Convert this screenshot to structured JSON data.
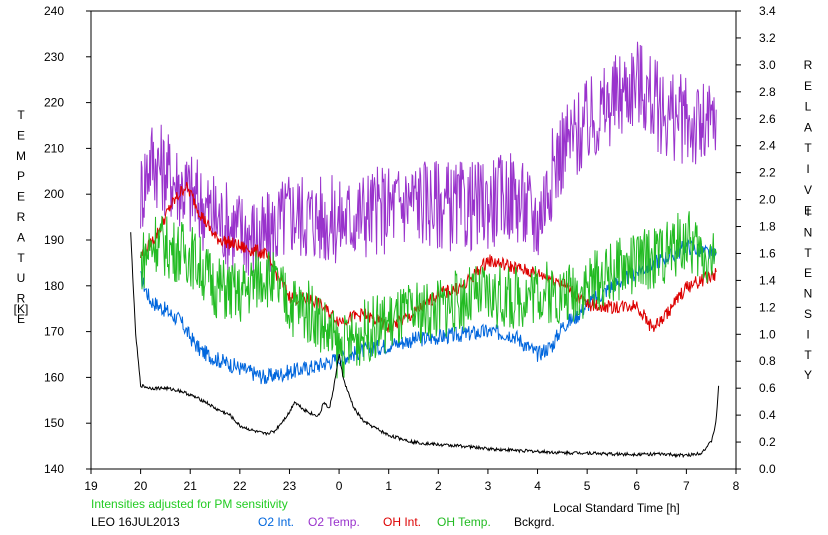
{
  "chart_data": {
    "type": "line",
    "title": "",
    "xlabel": "Local Standard Time [h]",
    "ylabel_left_letters": [
      "T",
      "E",
      "M",
      "P",
      "E",
      "R",
      "A",
      "T",
      "U",
      "R",
      "E"
    ],
    "ylabel_left_unit": "[K]",
    "ylabel_right_word1": [
      "R",
      "E",
      "L",
      "A",
      "T",
      "I",
      "V",
      "E"
    ],
    "ylabel_right_word2": [
      "I",
      "N",
      "T",
      "E",
      "N",
      "S",
      "I",
      "T",
      "Y"
    ],
    "x_range": [
      19,
      32
    ],
    "x_tick_labels": [
      "19",
      "20",
      "21",
      "22",
      "23",
      "0",
      "1",
      "2",
      "3",
      "4",
      "5",
      "6",
      "7",
      "8"
    ],
    "y_left_range": [
      140,
      240
    ],
    "y_left_ticks": [
      "140",
      "150",
      "160",
      "170",
      "180",
      "190",
      "200",
      "210",
      "220",
      "230",
      "240"
    ],
    "y_right_range": [
      0,
      3.4
    ],
    "y_right_ticks": [
      "0.0",
      "0.2",
      "0.4",
      "0.6",
      "0.8",
      "1.0",
      "1.2",
      "1.4",
      "1.6",
      "1.8",
      "2.0",
      "2.2",
      "2.4",
      "2.6",
      "2.8",
      "3.0",
      "3.2",
      "3.4"
    ],
    "note": "Intensities adjusted for PM sensitivity",
    "station_date": "LEO 16JUL2013",
    "series": [
      {
        "name": "O2 Int.",
        "axis": "right",
        "color": "#0066dd",
        "x": [
          20.0,
          20.2,
          20.5,
          20.8,
          21.0,
          21.2,
          21.5,
          22.0,
          22.5,
          23.0,
          23.5,
          24.0,
          24.5,
          25.0,
          25.5,
          26.0,
          26.5,
          27.0,
          27.5,
          28.0,
          28.3,
          28.5,
          28.8,
          29.0,
          29.3,
          29.5,
          29.8,
          30.0,
          30.3,
          30.5,
          30.8,
          31.0,
          31.3,
          31.6
        ],
        "values": [
          1.42,
          1.25,
          1.18,
          1.1,
          0.98,
          0.88,
          0.82,
          0.75,
          0.68,
          0.72,
          0.76,
          0.82,
          0.88,
          0.92,
          0.96,
          0.98,
          1.0,
          1.02,
          1.0,
          0.85,
          0.92,
          1.06,
          1.14,
          1.22,
          1.3,
          1.36,
          1.42,
          1.46,
          1.52,
          1.56,
          1.6,
          1.66,
          1.62,
          1.58
        ]
      },
      {
        "name": "O2 Temp.",
        "axis": "left",
        "color": "#9933cc",
        "x": [
          20.0,
          20.2,
          20.5,
          21.0,
          21.5,
          22.0,
          22.5,
          23.0,
          23.5,
          24.0,
          24.5,
          25.0,
          25.5,
          26.0,
          26.5,
          27.0,
          27.5,
          28.0,
          28.3,
          28.5,
          29.0,
          29.5,
          30.0,
          30.5,
          31.0,
          31.3,
          31.6
        ],
        "values": [
          200,
          208,
          205,
          200,
          195,
          192,
          190,
          196,
          195,
          194,
          196,
          197,
          199,
          198,
          197,
          198,
          200,
          194,
          205,
          210,
          215,
          220,
          225,
          218,
          216,
          214,
          215
        ]
      },
      {
        "name": "OH Int.",
        "axis": "right",
        "color": "#dd0000",
        "x": [
          20.0,
          20.3,
          20.6,
          20.9,
          21.0,
          21.2,
          21.5,
          22.0,
          22.5,
          23.0,
          23.5,
          24.0,
          24.5,
          25.0,
          25.5,
          26.0,
          26.5,
          27.0,
          27.5,
          28.0,
          28.3,
          28.5,
          29.0,
          29.5,
          30.0,
          30.3,
          30.5,
          30.8,
          31.0,
          31.3,
          31.6
        ],
        "values": [
          1.58,
          1.72,
          1.95,
          2.1,
          2.05,
          1.9,
          1.72,
          1.65,
          1.6,
          1.28,
          1.25,
          1.1,
          1.15,
          1.05,
          1.15,
          1.3,
          1.35,
          1.55,
          1.5,
          1.45,
          1.42,
          1.38,
          1.22,
          1.2,
          1.22,
          1.05,
          1.1,
          1.25,
          1.35,
          1.4,
          1.45
        ]
      },
      {
        "name": "OH Temp.",
        "axis": "left",
        "color": "#22bb22",
        "x": [
          20.0,
          20.3,
          20.6,
          21.0,
          21.5,
          22.0,
          22.5,
          23.0,
          23.5,
          24.0,
          24.5,
          25.0,
          25.5,
          26.0,
          26.5,
          27.0,
          27.5,
          28.0,
          28.5,
          29.0,
          29.5,
          30.0,
          30.5,
          31.0,
          31.3,
          31.6
        ],
        "values": [
          185,
          190,
          188,
          187,
          180,
          178,
          183,
          176,
          174,
          166,
          170,
          172,
          174,
          175,
          177,
          178,
          177,
          179,
          178,
          180,
          183,
          185,
          187,
          190,
          187,
          186
        ]
      },
      {
        "name": "Bckgrd.",
        "axis": "right",
        "color": "#000000",
        "x": [
          19.8,
          19.9,
          20.0,
          20.2,
          20.5,
          20.8,
          21.0,
          21.3,
          21.5,
          21.8,
          22.0,
          22.3,
          22.5,
          22.7,
          23.0,
          23.1,
          23.3,
          23.5,
          23.6,
          23.7,
          23.8,
          23.9,
          24.0,
          24.1,
          24.3,
          24.5,
          25.0,
          25.5,
          26.0,
          26.5,
          27.0,
          27.5,
          28.0,
          28.5,
          29.0,
          29.5,
          30.0,
          30.5,
          31.0,
          31.3,
          31.5,
          31.6,
          31.65
        ],
        "values": [
          1.75,
          1.0,
          0.62,
          0.6,
          0.6,
          0.58,
          0.55,
          0.5,
          0.45,
          0.4,
          0.32,
          0.28,
          0.26,
          0.28,
          0.42,
          0.5,
          0.44,
          0.4,
          0.4,
          0.5,
          0.44,
          0.62,
          0.85,
          0.65,
          0.45,
          0.35,
          0.25,
          0.2,
          0.18,
          0.17,
          0.15,
          0.14,
          0.13,
          0.12,
          0.12,
          0.11,
          0.11,
          0.11,
          0.1,
          0.12,
          0.2,
          0.35,
          0.62
        ]
      }
    ]
  }
}
